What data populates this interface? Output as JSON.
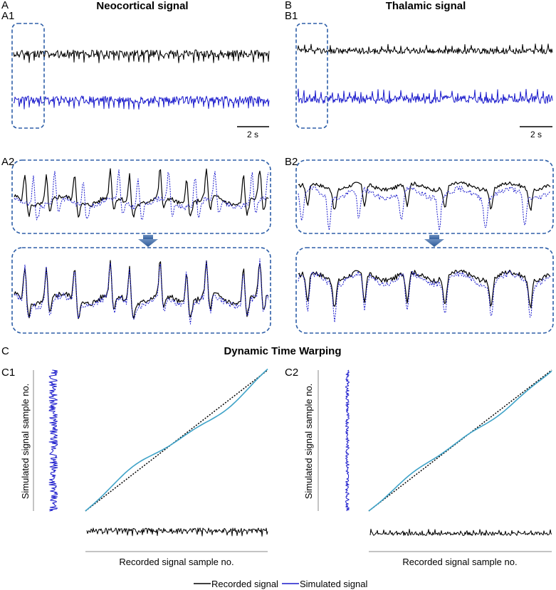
{
  "panels": {
    "A": {
      "letter": "A",
      "title": "Neocortical signal",
      "sub1": "A1",
      "sub2": "A2",
      "scale_bar": "2 s"
    },
    "B": {
      "letter": "B",
      "title": "Thalamic signal",
      "sub1": "B1",
      "sub2": "B2",
      "scale_bar": "2 s"
    },
    "C": {
      "letter": "C",
      "title": "Dynamic Time Warping",
      "sub1": "C1",
      "sub2": "C2"
    }
  },
  "axes": {
    "y_label": "Simulated signal sample no.",
    "x_label": "Recorded signal sample no."
  },
  "legend": {
    "recorded": "Recorded signal",
    "simulated": "Simulated signal"
  },
  "colors": {
    "recorded": "#000000",
    "simulated": "#1a1acc",
    "frame": "#2e5fa8",
    "warp_path": "#3fa3c8",
    "arrow": "#2d5a97"
  }
}
